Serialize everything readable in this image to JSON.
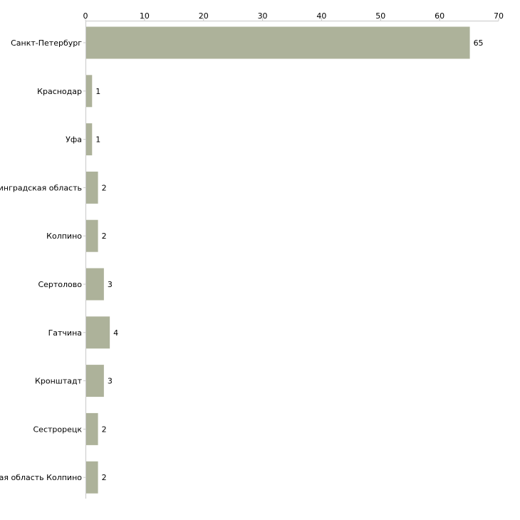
{
  "chart_data": {
    "type": "bar",
    "orientation": "horizontal",
    "title": "",
    "xlabel": "",
    "ylabel": "",
    "xlim": [
      0,
      70
    ],
    "ticks": [
      0,
      10,
      20,
      30,
      40,
      50,
      60,
      70
    ],
    "categories": [
      "Санкт-Петербург",
      "Краснодар",
      "Уфа",
      "Ленинградская область",
      "Колпино",
      "Сертолово",
      "Гатчина",
      "Кронштадт",
      "Сестрорецк",
      "Ленинградская область Колпино"
    ],
    "values": [
      65,
      1,
      1,
      2,
      2,
      3,
      4,
      3,
      2,
      2
    ],
    "bar_color": "#adb29a",
    "axis_color": "#c8c8c8",
    "grid": false,
    "legend": "none"
  }
}
